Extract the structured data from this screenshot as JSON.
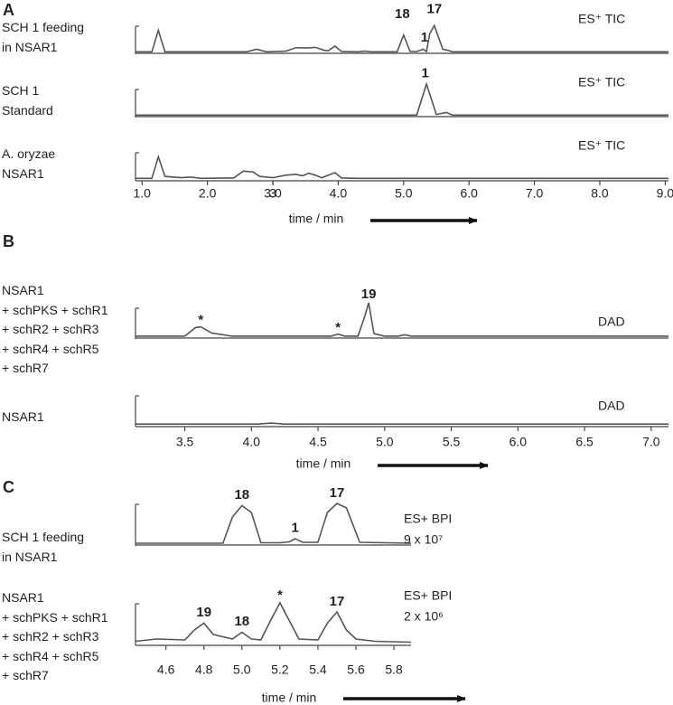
{
  "chart_data": [
    {
      "type": "line",
      "label": "A",
      "xlabel": "time / min",
      "xlim": [
        0.9,
        9.05
      ],
      "xticks": [
        {
          "value": 1,
          "label": "1.0"
        },
        {
          "value": 2,
          "label": "2.0"
        },
        3.0,
        {
          "value": 3,
          "label": "3.0"
        },
        {
          "value": 4,
          "label": "4.0"
        },
        {
          "value": 5,
          "label": "5.0"
        },
        {
          "value": 6,
          "label": "6.0"
        },
        {
          "value": 7,
          "label": "7.0"
        },
        {
          "value": 8,
          "label": "8.0"
        },
        {
          "value": 9,
          "label": "9.0"
        }
      ],
      "ylim": [
        0,
        100
      ],
      "series": [
        {
          "name": "SCH 1 feeding\nin NSAR1",
          "tag": [
            "ES⁺ TIC"
          ],
          "color": "#555555",
          "x": [
            0.9,
            1.15,
            1.25,
            1.35,
            1.6,
            2.6,
            2.75,
            2.9,
            3.2,
            3.35,
            3.5,
            3.65,
            3.8,
            3.85,
            3.95,
            4.05,
            4.3,
            4.4,
            4.5,
            4.9,
            5.0,
            5.1,
            5.2,
            5.3,
            5.35,
            5.4,
            5.47,
            5.6,
            5.65,
            5.75,
            6.0,
            9.05
          ],
          "values": [
            2,
            2,
            70,
            2,
            2,
            2,
            10,
            2,
            4,
            15,
            14,
            16,
            6,
            6,
            20,
            3,
            2,
            4,
            2,
            2,
            55,
            3,
            3,
            10,
            3,
            60,
            85,
            10,
            8,
            2,
            2,
            2
          ],
          "peak_labels": [
            {
              "text": "18",
              "x": 4.98,
              "y": 120
            },
            {
              "text": "1",
              "x": 5.32,
              "y": 45
            },
            {
              "text": "17",
              "x": 5.47,
              "y": 135
            }
          ]
        },
        {
          "name": "SCH 1\nStandard",
          "tag": [
            "ES⁺ TIC"
          ],
          "color": "#555555",
          "x": [
            0.9,
            5.2,
            5.35,
            5.5,
            5.55,
            5.65,
            5.75,
            9.05
          ],
          "values": [
            2,
            2,
            100,
            4,
            6,
            10,
            2,
            2
          ],
          "peak_labels": [
            {
              "text": "1",
              "x": 5.33,
              "y": 133
            }
          ]
        },
        {
          "name": "A. oryzae\nNSAR1",
          "tag": [
            "ES⁺ TIC"
          ],
          "color": "#555555",
          "x": [
            0.9,
            1.15,
            1.25,
            1.35,
            1.6,
            1.75,
            1.9,
            2.4,
            2.55,
            2.7,
            2.8,
            3.0,
            3.2,
            3.35,
            3.45,
            3.55,
            3.65,
            3.75,
            3.95,
            4.05,
            4.3,
            9.05
          ],
          "values": [
            2,
            2,
            70,
            8,
            4,
            6,
            2,
            3,
            25,
            22,
            8,
            4,
            12,
            15,
            10,
            18,
            12,
            4,
            20,
            3,
            2,
            2
          ],
          "peak_labels": []
        }
      ]
    },
    {
      "type": "line",
      "label": "B",
      "xlabel": "time / min",
      "xlim": [
        3.13,
        7.13
      ],
      "xticks": [
        3.5,
        {
          "value": 4,
          "label": "4.0"
        },
        4.5,
        {
          "value": 5,
          "label": "5.0"
        },
        5.5,
        {
          "value": 6,
          "label": "6.0"
        },
        6.5,
        {
          "value": 7,
          "label": "7.0"
        }
      ],
      "ylim": [
        0,
        100
      ],
      "series": [
        {
          "name": "NSAR1\n+ schPKS + schR1\n+ schR2 + schR3\n+ schR4 + schR5\n+ schR7",
          "tag": [
            "DAD"
          ],
          "color": "#555555",
          "x": [
            3.13,
            3.5,
            3.58,
            3.62,
            3.7,
            3.85,
            4.5,
            4.6,
            4.65,
            4.7,
            4.8,
            4.85,
            4.88,
            4.92,
            5.0,
            5.1,
            5.15,
            5.2,
            7.13
          ],
          "values": [
            3,
            3,
            28,
            30,
            12,
            3,
            3,
            3,
            9,
            3,
            3,
            60,
            100,
            10,
            3,
            3,
            7,
            3,
            3
          ],
          "peak_labels": [
            {
              "text": "*",
              "x": 3.62,
              "y": 48
            },
            {
              "text": "*",
              "x": 4.65,
              "y": 26
            },
            {
              "text": "19",
              "x": 4.88,
              "y": 124
            }
          ]
        },
        {
          "name": "NSAR1",
          "tag": [
            "DAD"
          ],
          "color": "#555555",
          "x": [
            3.13,
            4.05,
            4.15,
            4.25,
            7.13
          ],
          "values": [
            2,
            2,
            5,
            2,
            2
          ],
          "peak_labels": []
        }
      ]
    },
    {
      "type": "line",
      "label": "C",
      "xlabel": "time / min",
      "xlim": [
        4.44,
        5.89
      ],
      "xticks": [
        4.6,
        4.8,
        {
          "value": 5,
          "label": "5.0"
        },
        5.2,
        5.4,
        5.6,
        5.8
      ],
      "ylim": [
        0,
        100
      ],
      "series": [
        {
          "name": "SCH 1 feeding\nin NSAR1",
          "tag": [
            "ES+ BPI",
            "9 x 10⁷"
          ],
          "color": "#555555",
          "x": [
            4.44,
            4.9,
            4.95,
            5.0,
            5.05,
            5.1,
            5.2,
            5.25,
            5.28,
            5.32,
            5.4,
            5.45,
            5.5,
            5.55,
            5.62,
            5.89
          ],
          "values": [
            2,
            2,
            60,
            85,
            70,
            3,
            3,
            5,
            12,
            4,
            4,
            70,
            90,
            80,
            4,
            2
          ],
          "peak_labels": [
            {
              "text": "18",
              "x": 5.0,
              "y": 108
            },
            {
              "text": "1",
              "x": 5.28,
              "y": 35
            },
            {
              "text": "17",
              "x": 5.5,
              "y": 112
            }
          ]
        },
        {
          "name": "NSAR1\n+ schPKS + schR1\n+ schR2 + schR3\n+ schR4 + schR5\n+ schR7",
          "tag": [
            "ES+ BPI",
            "2 x 10⁶"
          ],
          "color": "#555555",
          "x": [
            4.44,
            4.55,
            4.7,
            4.75,
            4.8,
            4.85,
            4.95,
            5.0,
            5.05,
            5.1,
            5.15,
            5.2,
            5.25,
            5.3,
            5.4,
            5.45,
            5.5,
            5.55,
            5.6,
            5.7,
            5.89
          ],
          "values": [
            5,
            10,
            8,
            30,
            45,
            20,
            10,
            25,
            10,
            8,
            50,
            90,
            50,
            10,
            8,
            45,
            70,
            30,
            10,
            5,
            3
          ],
          "peak_labels": [
            {
              "text": "19",
              "x": 4.8,
              "y": 68
            },
            {
              "text": "18",
              "x": 5.0,
              "y": 48
            },
            {
              "text": "*",
              "x": 5.2,
              "y": 106
            },
            {
              "text": "17",
              "x": 5.5,
              "y": 92
            }
          ]
        }
      ]
    }
  ]
}
